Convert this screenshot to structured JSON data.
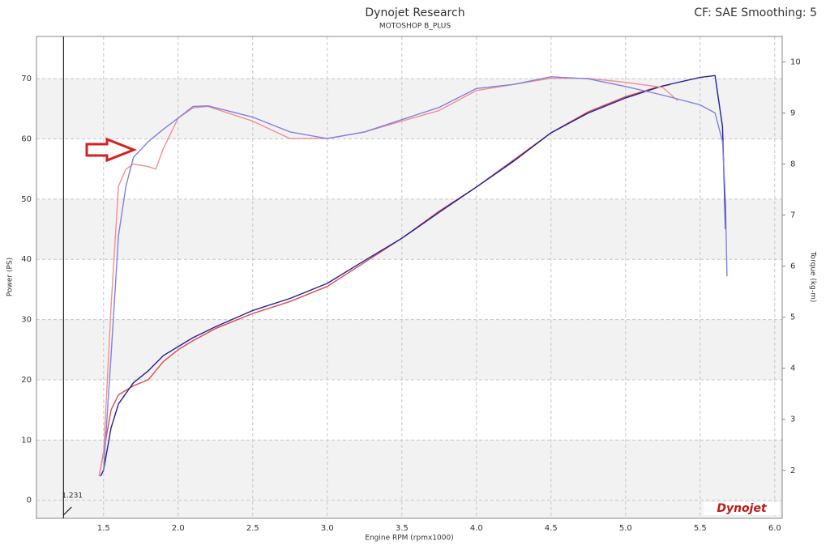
{
  "chart_data": {
    "type": "line",
    "title": "Dynojet Research",
    "subtitle": "MOTOSHOP B_PLUS",
    "settings_text": "CF: SAE Smoothing: 5",
    "xlabel": "Engine RPM (rpmx1000)",
    "ylabel": "Power (PS)",
    "y2label": "Torque (kg-m)",
    "logo": "Dynojet",
    "cursor_x": 1.231,
    "xlim": [
      1.05,
      6.05
    ],
    "xticks": [
      1.5,
      {
        "value": 2,
        "label": "2.0"
      },
      2.5,
      {
        "value": 3,
        "label": "3.0"
      },
      3.5,
      {
        "value": 4,
        "label": "4.0"
      },
      4.5,
      {
        "value": 5,
        "label": "5.0"
      },
      5.5,
      {
        "value": 6,
        "label": "6.0"
      }
    ],
    "ylim": [
      -3,
      77
    ],
    "yticks": [
      0,
      10,
      20,
      30,
      40,
      50,
      60,
      70
    ],
    "y2lim": [
      1.06,
      10.5
    ],
    "y2ticks": [
      2,
      3,
      4,
      5,
      6,
      7,
      8,
      9,
      10
    ],
    "grid": true,
    "series": [
      {
        "color": "#e04848",
        "x": [
          1.47,
          1.5,
          1.55,
          1.6,
          1.7,
          1.8,
          1.9,
          2.0,
          2.1,
          2.25,
          2.5,
          2.75,
          3.0,
          3.25,
          3.5,
          3.75,
          4.0,
          4.25,
          4.5,
          4.75,
          5.0,
          5.2,
          5.3
        ],
        "values": [
          4,
          8,
          15,
          17.5,
          19,
          20,
          23,
          25,
          26.5,
          28.5,
          31,
          33,
          35.5,
          39.5,
          43.5,
          48,
          52,
          56.5,
          61,
          64.5,
          67,
          68.5,
          69
        ]
      },
      {
        "color": "#20209a",
        "x": [
          1.48,
          1.5,
          1.55,
          1.6,
          1.7,
          1.8,
          1.9,
          2.0,
          2.1,
          2.25,
          2.5,
          2.75,
          3.0,
          3.25,
          3.5,
          3.75,
          4.0,
          4.25,
          4.5,
          4.75,
          5.0,
          5.25,
          5.5,
          5.6,
          5.65,
          5.67
        ],
        "values": [
          4,
          5,
          12,
          16,
          19.5,
          21.5,
          24,
          25.5,
          27,
          28.8,
          31.5,
          33.5,
          36,
          39.8,
          43.5,
          47.8,
          52,
          56.3,
          61,
          64.3,
          66.8,
          68.8,
          70.2,
          70.5,
          62,
          45
        ]
      },
      {
        "color": "#f09090",
        "axis": "y2",
        "x": [
          1.47,
          1.5,
          1.55,
          1.6,
          1.65,
          1.7,
          1.8,
          1.85,
          1.9,
          2.0,
          2.1,
          2.2,
          2.5,
          2.75,
          3.0,
          3.25,
          3.5,
          3.75,
          4.0,
          4.25,
          4.5,
          4.75,
          5.0,
          5.25,
          5.35
        ],
        "values": [
          1.9,
          2.33,
          5.2,
          7.57,
          7.9,
          8.0,
          7.95,
          7.9,
          8.3,
          8.9,
          9.1,
          9.13,
          8.84,
          8.5,
          8.5,
          8.63,
          8.84,
          9.05,
          9.44,
          9.56,
          9.68,
          9.68,
          9.6,
          9.5,
          9.24
        ]
      },
      {
        "color": "#8080e0",
        "axis": "y2",
        "x": [
          1.5,
          1.55,
          1.6,
          1.65,
          1.7,
          1.8,
          1.9,
          2.0,
          2.1,
          2.2,
          2.5,
          2.75,
          3.0,
          3.25,
          3.5,
          3.75,
          4.0,
          4.25,
          4.5,
          4.75,
          5.0,
          5.25,
          5.5,
          5.6,
          5.65,
          5.67,
          5.68
        ],
        "values": [
          2.0,
          4.24,
          6.6,
          7.57,
          8.13,
          8.44,
          8.68,
          8.9,
          9.13,
          9.14,
          8.92,
          8.63,
          8.5,
          8.63,
          8.87,
          9.11,
          9.48,
          9.56,
          9.71,
          9.67,
          9.52,
          9.35,
          9.16,
          9.0,
          8.44,
          7.25,
          5.8
        ]
      }
    ]
  }
}
